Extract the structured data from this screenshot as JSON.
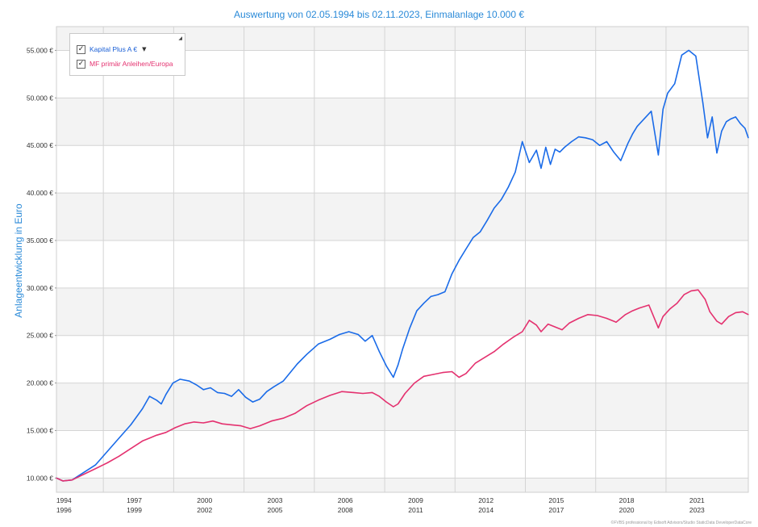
{
  "chart_data": {
    "type": "line",
    "title": "Auswertung von 02.05.1994 bis 02.11.2023, Einmalanlage 10.000 €",
    "ylabel": "Anlageentwicklung  in Euro",
    "xlabel": "",
    "xlim": [
      1994.33,
      2023.84
    ],
    "ylim": [
      8500,
      57500
    ],
    "yticks": [
      10000,
      15000,
      20000,
      25000,
      30000,
      35000,
      40000,
      45000,
      50000,
      55000
    ],
    "ytick_labels": [
      "10.000 €",
      "15.000 €",
      "20.000 €",
      "25.000 €",
      "30.000 €",
      "35.000 €",
      "40.000 €",
      "45.000 €",
      "50.000 €",
      "55.000 €"
    ],
    "xticks": [
      1994,
      1996,
      1997,
      1999,
      2000,
      2002,
      2003,
      2005,
      2006,
      2008,
      2009,
      2011,
      2012,
      2014,
      2015,
      2017,
      2018,
      2020,
      2021,
      2023
    ],
    "xtick_top": [
      "1994",
      "1997",
      "2000",
      "2003",
      "2006",
      "2009",
      "2012",
      "2015",
      "2018",
      "2021"
    ],
    "xtick_bottom": [
      "1996",
      "1999",
      "2002",
      "2005",
      "2008",
      "2011",
      "2014",
      "2017",
      "2020",
      "2023"
    ],
    "footer": "©FVBS professional by Edisoft Advisors/Studio StaticData DeveloperDataCore",
    "legend_placement": "top-left",
    "grid": true,
    "series": [
      {
        "name": "Kapital Plus A €",
        "color": "#1a6be8",
        "x": [
          1994.33,
          1994.6,
          1995.0,
          1995.5,
          1996.0,
          1996.5,
          1997.0,
          1997.5,
          1998.0,
          1998.3,
          1998.6,
          1998.8,
          1999.0,
          1999.3,
          1999.6,
          2000.0,
          2000.3,
          2000.6,
          2000.9,
          2001.2,
          2001.5,
          2001.8,
          2002.1,
          2002.4,
          2002.7,
          2003.0,
          2003.3,
          2003.6,
          2004.0,
          2004.3,
          2004.6,
          2005.0,
          2005.5,
          2006.0,
          2006.4,
          2006.8,
          2007.2,
          2007.5,
          2007.8,
          2008.1,
          2008.4,
          2008.7,
          2008.9,
          2009.1,
          2009.4,
          2009.7,
          2010.0,
          2010.3,
          2010.6,
          2010.9,
          2011.2,
          2011.5,
          2011.8,
          2012.1,
          2012.4,
          2012.7,
          2013.0,
          2013.3,
          2013.6,
          2013.9,
          2014.2,
          2014.5,
          2014.8,
          2015.0,
          2015.2,
          2015.4,
          2015.6,
          2015.8,
          2016.0,
          2016.3,
          2016.6,
          2016.9,
          2017.2,
          2017.5,
          2017.8,
          2018.1,
          2018.4,
          2018.7,
          2018.9,
          2019.1,
          2019.4,
          2019.7,
          2020.0,
          2020.2,
          2020.4,
          2020.7,
          2021.0,
          2021.3,
          2021.6,
          2021.9,
          2022.1,
          2022.3,
          2022.5,
          2022.7,
          2022.9,
          2023.1,
          2023.3,
          2023.5,
          2023.7,
          2023.84
        ],
        "values": [
          10000,
          9700,
          9800,
          10600,
          11400,
          12800,
          14200,
          15600,
          17300,
          18600,
          18200,
          17800,
          18800,
          20000,
          20400,
          20200,
          19800,
          19300,
          19500,
          19000,
          18900,
          18600,
          19300,
          18500,
          18000,
          18300,
          19100,
          19600,
          20200,
          21100,
          22000,
          23000,
          24100,
          24600,
          25100,
          25400,
          25100,
          24400,
          25000,
          23300,
          21800,
          20600,
          21900,
          23600,
          25800,
          27600,
          28400,
          29100,
          29300,
          29600,
          31500,
          32900,
          34100,
          35300,
          35900,
          37100,
          38400,
          39300,
          40600,
          42200,
          45400,
          43200,
          44500,
          42600,
          44800,
          43000,
          44600,
          44300,
          44800,
          45400,
          45900,
          45800,
          45600,
          45000,
          45400,
          44300,
          43400,
          45200,
          46200,
          47000,
          47800,
          48600,
          44000,
          48800,
          50500,
          51500,
          54500,
          55000,
          54400,
          49500,
          45800,
          48000,
          44200,
          46500,
          47500,
          47800,
          48000,
          47300,
          46800,
          45800
        ]
      },
      {
        "name": "MF primär Anleihen/Europa",
        "color": "#e4316f",
        "x": [
          1994.33,
          1994.6,
          1995.0,
          1995.5,
          1996.0,
          1996.5,
          1997.0,
          1997.5,
          1998.0,
          1998.3,
          1998.6,
          1999.0,
          1999.4,
          1999.8,
          2000.2,
          2000.6,
          2001.0,
          2001.4,
          2001.8,
          2002.2,
          2002.6,
          2003.0,
          2003.5,
          2004.0,
          2004.5,
          2005.0,
          2005.5,
          2006.0,
          2006.5,
          2007.0,
          2007.4,
          2007.8,
          2008.1,
          2008.4,
          2008.7,
          2008.9,
          2009.2,
          2009.6,
          2010.0,
          2010.4,
          2010.8,
          2011.2,
          2011.5,
          2011.8,
          2012.2,
          2012.6,
          2013.0,
          2013.4,
          2013.8,
          2014.2,
          2014.5,
          2014.8,
          2015.0,
          2015.3,
          2015.6,
          2015.9,
          2016.2,
          2016.6,
          2017.0,
          2017.4,
          2017.8,
          2018.2,
          2018.6,
          2018.9,
          2019.2,
          2019.6,
          2020.0,
          2020.2,
          2020.5,
          2020.8,
          2021.1,
          2021.4,
          2021.7,
          2022.0,
          2022.2,
          2022.5,
          2022.7,
          2023.0,
          2023.3,
          2023.6,
          2023.84
        ],
        "values": [
          10000,
          9700,
          9800,
          10400,
          11000,
          11600,
          12300,
          13100,
          13900,
          14200,
          14500,
          14800,
          15300,
          15700,
          15900,
          15800,
          16000,
          15700,
          15600,
          15500,
          15200,
          15500,
          16000,
          16300,
          16800,
          17600,
          18200,
          18700,
          19100,
          19000,
          18900,
          19000,
          18600,
          18000,
          17500,
          17800,
          18900,
          20000,
          20700,
          20900,
          21100,
          21200,
          20600,
          21000,
          22100,
          22700,
          23300,
          24100,
          24800,
          25400,
          26600,
          26100,
          25400,
          26200,
          25900,
          25600,
          26300,
          26800,
          27200,
          27100,
          26800,
          26400,
          27200,
          27600,
          27900,
          28200,
          25800,
          27000,
          27800,
          28400,
          29300,
          29700,
          29800,
          28800,
          27500,
          26500,
          26200,
          27000,
          27400,
          27500,
          27200
        ]
      }
    ]
  }
}
